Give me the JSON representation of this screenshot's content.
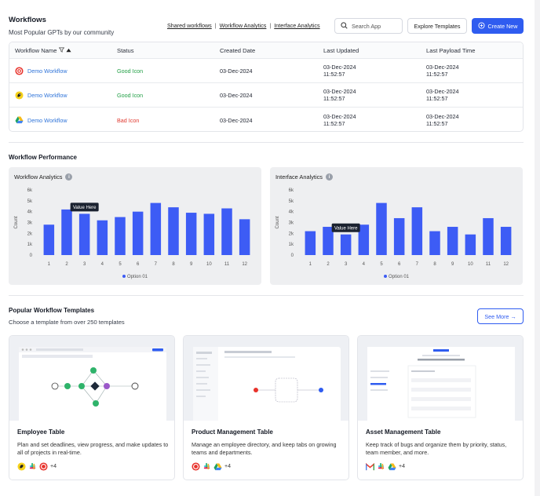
{
  "header": {
    "title": "Workflows",
    "subtitle": "Most Popular GPTs by our community",
    "links": [
      "Shared workflows",
      "Workflow Analytics",
      "Interface Analytics"
    ],
    "search_placeholder": "Search App",
    "explore_label": "Explore Templates",
    "create_label": "Create New"
  },
  "table": {
    "columns": [
      "Workflow Name",
      "Status",
      "Created Date",
      "Last Updated",
      "Last Payload Time"
    ],
    "rows": [
      {
        "logo": "target-logo-icon",
        "name": "Demo Workflow",
        "status": "Good Icon",
        "status_kind": "good",
        "created": "03-Dec-2024",
        "updated_date": "03-Dec-2024",
        "updated_time": "11:52:57",
        "payload_date": "03-Dec-2024",
        "payload_time": "11:52:57"
      },
      {
        "logo": "mailchimp-logo-icon",
        "name": "Demo Workflow",
        "status": "Good Icon",
        "status_kind": "good",
        "created": "03-Dec-2024",
        "updated_date": "03-Dec-2024",
        "updated_time": "11:52:57",
        "payload_date": "03-Dec-2024",
        "payload_time": "11:52:57"
      },
      {
        "logo": "google-drive-logo-icon",
        "name": "Demo Workflow",
        "status": "Bad Icon",
        "status_kind": "bad",
        "created": "03-Dec-2024",
        "updated_date": "03-Dec-2024",
        "updated_time": "11:52:57",
        "payload_date": "03-Dec-2024",
        "payload_time": "11:52:57"
      }
    ]
  },
  "performance": {
    "title": "Workflow Performance"
  },
  "chart_data": [
    {
      "type": "bar",
      "title": "Workflow Analytics",
      "ylabel": "Count",
      "ylim": [
        0,
        6000
      ],
      "yticks": [
        "0",
        "1k",
        "2k",
        "3k",
        "4k",
        "5k",
        "6k"
      ],
      "categories": [
        "1",
        "2",
        "3",
        "4",
        "5",
        "6",
        "7",
        "8",
        "9",
        "10",
        "11",
        "12"
      ],
      "series": [
        {
          "name": "Option 01",
          "values": [
            2800,
            4200,
            3800,
            3200,
            3500,
            4000,
            4800,
            4400,
            3900,
            3800,
            4300,
            3300
          ]
        }
      ],
      "tooltip": {
        "text": "Value Here",
        "index": 2
      },
      "legend": "bottom",
      "color": "#3d5cf5"
    },
    {
      "type": "bar",
      "title": "Interface Analytics",
      "ylabel": "Count",
      "ylim": [
        0,
        6000
      ],
      "yticks": [
        "0",
        "1k",
        "2k",
        "3k",
        "4k",
        "5k",
        "6k"
      ],
      "categories": [
        "1",
        "2",
        "3",
        "4",
        "5",
        "6",
        "7",
        "8",
        "9",
        "10",
        "11",
        "12"
      ],
      "series": [
        {
          "name": "Option 01",
          "values": [
            2200,
            2600,
            1900,
            2800,
            4800,
            3400,
            4400,
            2200,
            2600,
            1900,
            3400,
            2600
          ]
        }
      ],
      "tooltip": {
        "text": "Value Here",
        "index": 2
      },
      "legend": "bottom",
      "color": "#3d5cf5"
    }
  ],
  "templates": {
    "title": "Popular Workflow Templates",
    "subtitle": "Choose a template from over 250 templates",
    "see_more": "See More",
    "cards": [
      {
        "name": "Employee Table",
        "desc": "Plan and set deadlines, view progress, and make updates to all of projects in real-time.",
        "icons": [
          "mailchimp-icon",
          "slack-icon",
          "target-icon"
        ],
        "more": "+4"
      },
      {
        "name": "Product Management Table",
        "desc": "Manage an employee directory, and keep tabs on growing teams and departments.",
        "icons": [
          "target-icon",
          "slack-icon",
          "google-drive-icon"
        ],
        "more": "+4"
      },
      {
        "name": "Asset Management Table",
        "desc": "Keep track of bugs and organize them by priority, status, team member, and more.",
        "icons": [
          "gmail-icon",
          "slack-icon",
          "google-drive-icon"
        ],
        "more": "+4"
      }
    ]
  }
}
